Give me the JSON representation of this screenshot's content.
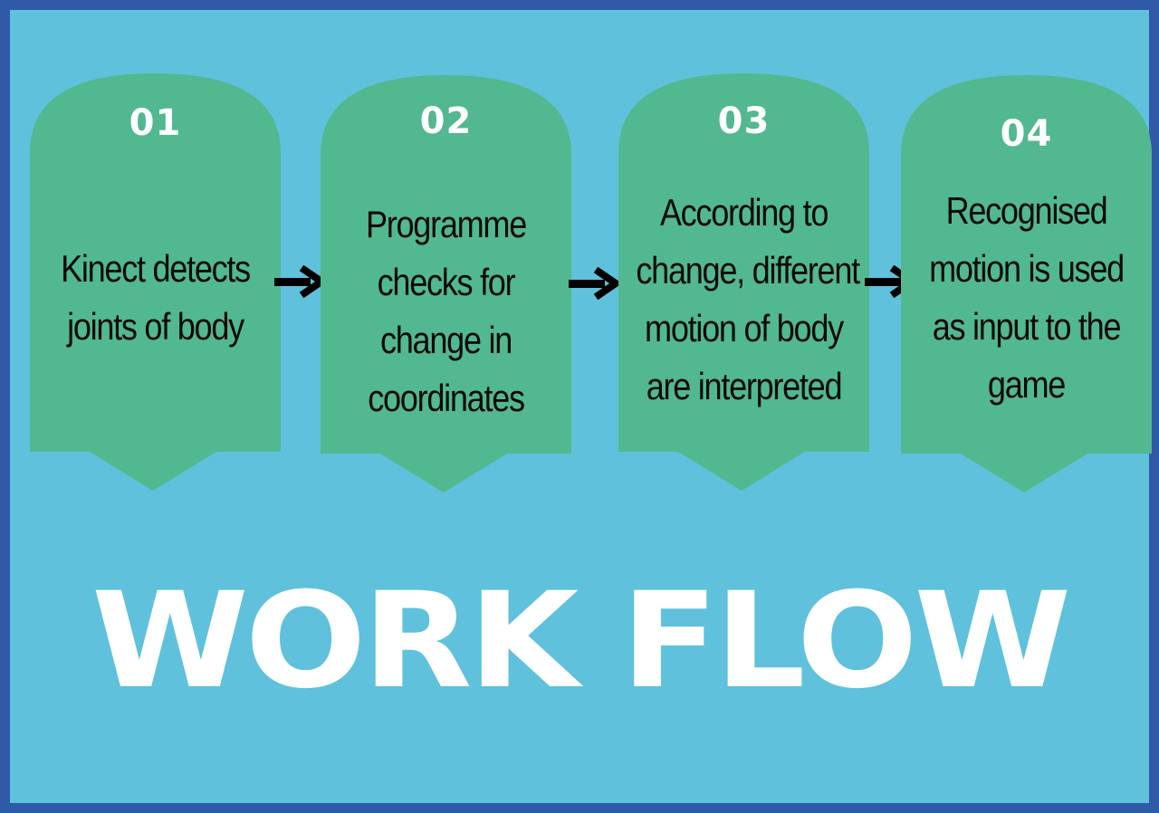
{
  "colors": {
    "background": "#5fc1dc",
    "border": "#2f5aa8",
    "card": "#52b88f",
    "number": "#ffffff",
    "text": "#0b0b0b",
    "arrow": "#000000",
    "title": "#ffffff"
  },
  "steps": [
    {
      "number": "01",
      "lines": [
        "Kinect detects",
        "joints of body"
      ]
    },
    {
      "number": "02",
      "lines": [
        "Programme",
        "checks for",
        "change in",
        "coordinates"
      ]
    },
    {
      "number": "03",
      "lines": [
        "According to",
        "change, different",
        "motion of body",
        "are interpreted"
      ]
    },
    {
      "number": "04",
      "lines": [
        "Recognised",
        "motion is used",
        "as input to the",
        "game"
      ]
    }
  ],
  "arrow_icon": "right-arrow-icon",
  "title": "WORK FLOW"
}
